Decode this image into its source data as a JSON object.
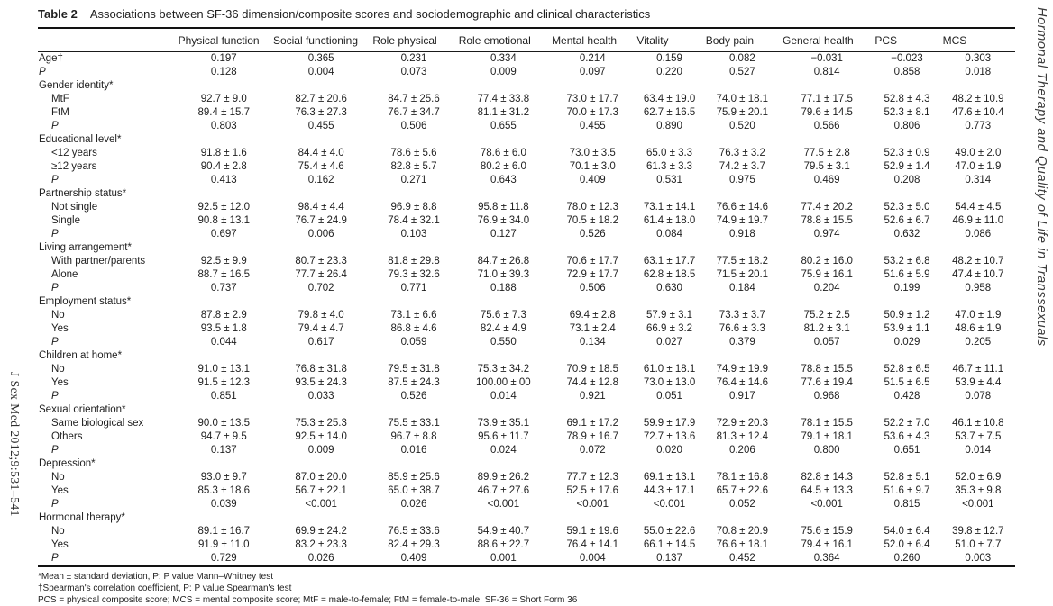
{
  "journal_ref": "J Sex Med 2012;9:531–541",
  "running_head": "Hormonal Therapy and Quality of Life in Transsexuals",
  "table": {
    "label": "Table 2",
    "title": "Associations between SF-36 dimension/composite scores and sociodemographic and clinical characteristics",
    "columns": [
      "Physical function",
      "Social functioning",
      "Role physical",
      "Role emotional",
      "Mental health",
      "Vitality",
      "Body pain",
      "General health",
      "PCS",
      "MCS"
    ],
    "rows": [
      {
        "label": "Age†",
        "indent": 0,
        "italic": false,
        "values": [
          "0.197",
          "0.365",
          "0.231",
          "0.334",
          "0.214",
          "0.159",
          "0.082",
          "−0.031",
          "−0.023",
          "0.303"
        ]
      },
      {
        "label": "P",
        "indent": 0,
        "italic": true,
        "values": [
          "0.128",
          "0.004",
          "0.073",
          "0.009",
          "0.097",
          "0.220",
          "0.527",
          "0.814",
          "0.858",
          "0.018"
        ]
      },
      {
        "label": "Gender identity*",
        "indent": 0,
        "italic": false,
        "values": []
      },
      {
        "label": "MtF",
        "indent": 1,
        "italic": false,
        "values": [
          "92.7 ± 9.0",
          "82.7 ± 20.6",
          "84.7 ± 25.6",
          "77.4 ± 33.8",
          "73.0 ± 17.7",
          "63.4 ± 19.0",
          "74.0 ± 18.1",
          "77.1 ± 17.5",
          "52.8 ± 4.3",
          "48.2 ± 10.9"
        ]
      },
      {
        "label": "FtM",
        "indent": 1,
        "italic": false,
        "values": [
          "89.4 ± 15.7",
          "76.3 ± 27.3",
          "76.7 ± 34.7",
          "81.1 ± 31.2",
          "70.0 ± 17.3",
          "62.7 ± 16.5",
          "75.9 ± 20.1",
          "79.6 ± 14.5",
          "52.3 ± 8.1",
          "47.6 ± 10.4"
        ]
      },
      {
        "label": "P",
        "indent": 1,
        "italic": true,
        "values": [
          "0.803",
          "0.455",
          "0.506",
          "0.655",
          "0.455",
          "0.890",
          "0.520",
          "0.566",
          "0.806",
          "0.773"
        ]
      },
      {
        "label": "Educational level*",
        "indent": 0,
        "italic": false,
        "values": []
      },
      {
        "label": "<12 years",
        "indent": 1,
        "italic": false,
        "values": [
          "91.8 ± 1.6",
          "84.4 ± 4.0",
          "78.6 ± 5.6",
          "78.6 ± 6.0",
          "73.0 ± 3.5",
          "65.0 ± 3.3",
          "76.3 ± 3.2",
          "77.5 ± 2.8",
          "52.3 ± 0.9",
          "49.0 ± 2.0"
        ]
      },
      {
        "label": "≥12 years",
        "indent": 1,
        "italic": false,
        "values": [
          "90.4 ± 2.8",
          "75.4 ± 4.6",
          "82.8 ± 5.7",
          "80.2 ± 6.0",
          "70.1 ± 3.0",
          "61.3 ± 3.3",
          "74.2 ± 3.7",
          "79.5 ± 3.1",
          "52.9 ± 1.4",
          "47.0 ± 1.9"
        ]
      },
      {
        "label": "P",
        "indent": 1,
        "italic": true,
        "values": [
          "0.413",
          "0.162",
          "0.271",
          "0.643",
          "0.409",
          "0.531",
          "0.975",
          "0.469",
          "0.208",
          "0.314"
        ]
      },
      {
        "label": "Partnership status*",
        "indent": 0,
        "italic": false,
        "values": []
      },
      {
        "label": "Not single",
        "indent": 1,
        "italic": false,
        "values": [
          "92.5 ± 12.0",
          "98.4 ± 4.4",
          "96.9 ± 8.8",
          "95.8 ± 11.8",
          "78.0 ± 12.3",
          "73.1 ± 14.1",
          "76.6 ± 14.6",
          "77.4 ± 20.2",
          "52.3 ± 5.0",
          "54.4 ± 4.5"
        ]
      },
      {
        "label": "Single",
        "indent": 1,
        "italic": false,
        "values": [
          "90.8 ± 13.1",
          "76.7 ± 24.9",
          "78.4 ± 32.1",
          "76.9 ± 34.0",
          "70.5 ± 18.2",
          "61.4 ± 18.0",
          "74.9 ± 19.7",
          "78.8 ± 15.5",
          "52.6 ± 6.7",
          "46.9 ± 11.0"
        ]
      },
      {
        "label": "P",
        "indent": 1,
        "italic": true,
        "values": [
          "0.697",
          "0.006",
          "0.103",
          "0.127",
          "0.526",
          "0.084",
          "0.918",
          "0.974",
          "0.632",
          "0.086"
        ]
      },
      {
        "label": "Living arrangement*",
        "indent": 0,
        "italic": false,
        "values": []
      },
      {
        "label": "With partner/parents",
        "indent": 1,
        "italic": false,
        "values": [
          "92.5 ± 9.9",
          "80.7 ± 23.3",
          "81.8 ± 29.8",
          "84.7 ± 26.8",
          "70.6 ± 17.7",
          "63.1 ± 17.7",
          "77.5 ± 18.2",
          "80.2 ± 16.0",
          "53.2 ± 6.8",
          "48.2 ± 10.7"
        ]
      },
      {
        "label": "Alone",
        "indent": 1,
        "italic": false,
        "values": [
          "88.7 ± 16.5",
          "77.7 ± 26.4",
          "79.3 ± 32.6",
          "71.0 ± 39.3",
          "72.9 ± 17.7",
          "62.8 ± 18.5",
          "71.5 ± 20.1",
          "75.9 ± 16.1",
          "51.6 ± 5.9",
          "47.4 ± 10.7"
        ]
      },
      {
        "label": "P",
        "indent": 1,
        "italic": true,
        "values": [
          "0.737",
          "0.702",
          "0.771",
          "0.188",
          "0.506",
          "0.630",
          "0.184",
          "0.204",
          "0.199",
          "0.958"
        ]
      },
      {
        "label": "Employment status*",
        "indent": 0,
        "italic": false,
        "values": []
      },
      {
        "label": "No",
        "indent": 1,
        "italic": false,
        "values": [
          "87.8 ± 2.9",
          "79.8 ± 4.0",
          "73.1 ± 6.6",
          "75.6 ± 7.3",
          "69.4 ± 2.8",
          "57.9 ± 3.1",
          "73.3 ± 3.7",
          "75.2 ± 2.5",
          "50.9 ± 1.2",
          "47.0 ± 1.9"
        ]
      },
      {
        "label": "Yes",
        "indent": 1,
        "italic": false,
        "values": [
          "93.5 ± 1.8",
          "79.4 ± 4.7",
          "86.8 ± 4.6",
          "82.4 ± 4.9",
          "73.1 ± 2.4",
          "66.9 ± 3.2",
          "76.6 ± 3.3",
          "81.2 ± 3.1",
          "53.9 ± 1.1",
          "48.6 ± 1.9"
        ]
      },
      {
        "label": "P",
        "indent": 1,
        "italic": true,
        "values": [
          "0.044",
          "0.617",
          "0.059",
          "0.550",
          "0.134",
          "0.027",
          "0.379",
          "0.057",
          "0.029",
          "0.205"
        ]
      },
      {
        "label": "Children at home*",
        "indent": 0,
        "italic": false,
        "values": []
      },
      {
        "label": "No",
        "indent": 1,
        "italic": false,
        "values": [
          "91.0 ± 13.1",
          "76.8 ± 31.8",
          "79.5 ± 31.8",
          "75.3 ± 34.2",
          "70.9 ± 18.5",
          "61.0 ± 18.1",
          "74.9 ± 19.9",
          "78.8 ± 15.5",
          "52.8 ± 6.5",
          "46.7 ± 11.1"
        ]
      },
      {
        "label": "Yes",
        "indent": 1,
        "italic": false,
        "values": [
          "91.5 ± 12.3",
          "93.5 ± 24.3",
          "87.5 ± 24.3",
          "100.00 ± 00",
          "74.4 ± 12.8",
          "73.0 ± 13.0",
          "76.4 ± 14.6",
          "77.6 ± 19.4",
          "51.5 ± 6.5",
          "53.9 ± 4.4"
        ]
      },
      {
        "label": "P",
        "indent": 1,
        "italic": true,
        "values": [
          "0.851",
          "0.033",
          "0.526",
          "0.014",
          "0.921",
          "0.051",
          "0.917",
          "0.968",
          "0.428",
          "0.078"
        ]
      },
      {
        "label": "Sexual orientation*",
        "indent": 0,
        "italic": false,
        "values": []
      },
      {
        "label": "Same biological sex",
        "indent": 1,
        "italic": false,
        "values": [
          "90.0 ± 13.5",
          "75.3 ± 25.3",
          "75.5 ± 33.1",
          "73.9 ± 35.1",
          "69.1 ± 17.2",
          "59.9 ± 17.9",
          "72.9 ± 20.3",
          "78.1 ± 15.5",
          "52.2 ± 7.0",
          "46.1 ± 10.8"
        ]
      },
      {
        "label": "Others",
        "indent": 1,
        "italic": false,
        "values": [
          "94.7 ± 9.5",
          "92.5 ± 14.0",
          "96.7 ± 8.8",
          "95.6 ± 11.7",
          "78.9 ± 16.7",
          "72.7 ± 13.6",
          "81.3 ± 12.4",
          "79.1 ± 18.1",
          "53.6 ± 4.3",
          "53.7 ± 7.5"
        ]
      },
      {
        "label": "P",
        "indent": 1,
        "italic": true,
        "values": [
          "0.137",
          "0.009",
          "0.016",
          "0.024",
          "0.072",
          "0.020",
          "0.206",
          "0.800",
          "0.651",
          "0.014"
        ]
      },
      {
        "label": "Depression*",
        "indent": 0,
        "italic": false,
        "values": []
      },
      {
        "label": "No",
        "indent": 1,
        "italic": false,
        "values": [
          "93.0 ± 9.7",
          "87.0 ± 20.0",
          "85.9 ± 25.6",
          "89.9 ± 26.2",
          "77.7 ± 12.3",
          "69.1 ± 13.1",
          "78.1 ± 16.8",
          "82.8 ± 14.3",
          "52.8 ± 5.1",
          "52.0 ± 6.9"
        ]
      },
      {
        "label": "Yes",
        "indent": 1,
        "italic": false,
        "values": [
          "85.3 ± 18.6",
          "56.7 ± 22.1",
          "65.0 ± 38.7",
          "46.7 ± 27.6",
          "52.5 ± 17.6",
          "44.3 ± 17.1",
          "65.7 ± 22.6",
          "64.5 ± 13.3",
          "51.6 ± 9.7",
          "35.3 ± 9.8"
        ]
      },
      {
        "label": "P",
        "indent": 1,
        "italic": true,
        "values": [
          "0.039",
          "<0.001",
          "0.026",
          "<0.001",
          "<0.001",
          "<0.001",
          "0.052",
          "<0.001",
          "0.815",
          "<0.001"
        ]
      },
      {
        "label": "Hormonal therapy*",
        "indent": 0,
        "italic": false,
        "values": []
      },
      {
        "label": "No",
        "indent": 1,
        "italic": false,
        "values": [
          "89.1 ± 16.7",
          "69.9 ± 24.2",
          "76.5 ± 33.6",
          "54.9 ± 40.7",
          "59.1 ± 19.6",
          "55.0 ± 22.6",
          "70.8 ± 20.9",
          "75.6 ± 15.9",
          "54.0 ± 6.4",
          "39.8 ± 12.7"
        ]
      },
      {
        "label": "Yes",
        "indent": 1,
        "italic": false,
        "values": [
          "91.9 ± 11.0",
          "83.2 ± 23.3",
          "82.4 ± 29.3",
          "88.6 ± 22.7",
          "76.4 ± 14.1",
          "66.1 ± 14.5",
          "76.6 ± 18.1",
          "79.4 ± 16.1",
          "52.0 ± 6.4",
          "51.0 ± 7.7"
        ]
      },
      {
        "label": "P",
        "indent": 1,
        "italic": true,
        "values": [
          "0.729",
          "0.026",
          "0.409",
          "0.001",
          "0.004",
          "0.137",
          "0.452",
          "0.364",
          "0.260",
          "0.003"
        ]
      }
    ],
    "footnotes": [
      "*Mean ± standard deviation, P: P value Mann–Whitney test",
      "†Spearman's correlation coefficient, P: P value Spearman's test",
      "PCS = physical composite score; MCS = mental composite score; MtF = male-to-female; FtM = female-to-male; SF-36 = Short Form 36"
    ]
  }
}
